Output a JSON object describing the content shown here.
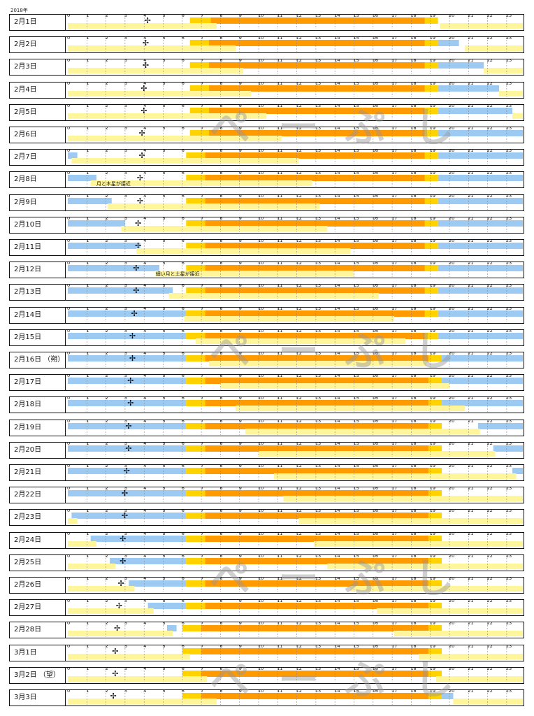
{
  "header_year": "2018年",
  "watermark_text": "ぺーぷし",
  "colors": {
    "day_core": "#ff9a00",
    "twilight": "#ffd200",
    "moon_up": "#fff59a",
    "night_sky": "#9ccaf2",
    "grid": "#888888",
    "border": "#111111"
  },
  "chart_data": {
    "type": "timeline",
    "title": "",
    "xlabel": "",
    "ylabel": "",
    "hour_ticks": [
      "0",
      "1",
      "2",
      "3",
      "4",
      "5",
      "6",
      "7",
      "8",
      "9",
      "10",
      "11",
      "12",
      "13",
      "14",
      "15",
      "16",
      "17",
      "18",
      "19",
      "20",
      "21",
      "22",
      "23"
    ],
    "xlim": [
      0,
      24
    ],
    "grid": true,
    "rows": [
      {
        "label": "2月1日",
        "blue": [],
        "yellow": [
          [
            0,
            7.8
          ],
          [
            19.5,
            24
          ]
        ],
        "cross": 4.2,
        "twilight_am": [
          6.4,
          7.5
        ],
        "day": [
          7.5,
          18.7
        ],
        "twilight_pm": [
          18.7,
          19.4
        ]
      },
      {
        "label": "2月2日",
        "blue": [
          [
            19.4,
            20.5
          ]
        ],
        "yellow": [
          [
            0,
            8.8
          ],
          [
            20.8,
            24
          ]
        ],
        "cross": 4.1,
        "twilight_am": [
          6.4,
          7.4
        ],
        "day": [
          7.4,
          18.7
        ],
        "twilight_pm": [
          18.7,
          19.4
        ]
      },
      {
        "label": "2月3日",
        "blue": [
          [
            19.4,
            21.8
          ]
        ],
        "yellow": [
          [
            0,
            9.2
          ],
          [
            21.8,
            24
          ]
        ],
        "cross": 4.1,
        "twilight_am": [
          6.4,
          7.4
        ],
        "day": [
          7.4,
          18.7
        ],
        "twilight_pm": [
          18.7,
          19.4
        ]
      },
      {
        "label": "2月4日",
        "blue": [
          [
            19.4,
            22.6
          ]
        ],
        "yellow": [
          [
            0,
            9.6
          ],
          [
            22.6,
            24
          ]
        ],
        "cross": 4.0,
        "twilight_am": [
          6.4,
          7.4
        ],
        "day": [
          7.4,
          18.7
        ],
        "twilight_pm": [
          18.7,
          19.4
        ]
      },
      {
        "label": "2月5日",
        "blue": [
          [
            19.4,
            23.3
          ]
        ],
        "yellow": [
          [
            0,
            10.4
          ],
          [
            23.3,
            24
          ]
        ],
        "cross": 4.0,
        "twilight_am": [
          6.4,
          7.4
        ],
        "day": [
          7.4,
          18.7
        ],
        "twilight_pm": [
          18.7,
          19.4
        ]
      },
      {
        "label": "2月6日",
        "blue": [
          [
            19.4,
            24
          ]
        ],
        "yellow": [
          [
            0,
            11.2
          ]
        ],
        "cross": 3.9,
        "twilight_am": [
          6.4,
          7.4
        ],
        "day": [
          7.4,
          18.7
        ],
        "twilight_pm": [
          18.7,
          19.4
        ]
      },
      {
        "label": "2月7日",
        "blue": [
          [
            0,
            0.5
          ],
          [
            19.4,
            24
          ]
        ],
        "yellow": [
          [
            0.2,
            12.1
          ]
        ],
        "cross": 3.9,
        "twilight_am": [
          6.2,
          7.2
        ],
        "day": [
          7.2,
          18.7
        ],
        "twilight_pm": [
          18.7,
          19.4
        ]
      },
      {
        "label": "2月8日",
        "blue": [
          [
            0,
            1.5
          ],
          [
            19.4,
            24
          ]
        ],
        "yellow": [
          [
            1.2,
            12.8
          ]
        ],
        "cross": 3.8,
        "twilight_am": [
          6.2,
          7.2
        ],
        "day": [
          7.2,
          18.7
        ],
        "twilight_pm": [
          18.7,
          19.4
        ],
        "note": {
          "text": "月と木星が接近",
          "at": 1.5
        }
      },
      {
        "label": "2月9日",
        "blue": [
          [
            0,
            2.3
          ],
          [
            19.4,
            24
          ]
        ],
        "yellow": [
          [
            2.1,
            13.2
          ]
        ],
        "cross": 3.8,
        "twilight_am": [
          6.2,
          7.2
        ],
        "day": [
          7.2,
          18.7
        ],
        "twilight_pm": [
          18.7,
          19.4
        ]
      },
      {
        "label": "2月10日",
        "blue": [
          [
            0,
            3.0
          ],
          [
            19.4,
            24
          ]
        ],
        "yellow": [
          [
            2.8,
            13.6
          ]
        ],
        "cross": 3.7,
        "twilight_am": [
          6.2,
          7.2
        ],
        "day": [
          7.2,
          18.7
        ],
        "twilight_pm": [
          18.7,
          19.4
        ]
      },
      {
        "label": "2月11日",
        "blue": [
          [
            0,
            3.8
          ],
          [
            19.4,
            24
          ]
        ],
        "yellow": [
          [
            3.6,
            14.8
          ]
        ],
        "cross": 3.7,
        "twilight_am": [
          6.2,
          7.2
        ],
        "day": [
          7.2,
          18.7
        ],
        "twilight_pm": [
          18.7,
          19.4
        ]
      },
      {
        "label": "2月12日",
        "blue": [
          [
            0,
            4.8
          ],
          [
            19.4,
            24
          ]
        ],
        "yellow": [
          [
            4.6,
            15.0
          ]
        ],
        "cross": 3.6,
        "twilight_am": [
          6.2,
          7.2
        ],
        "day": [
          7.2,
          18.7
        ],
        "twilight_pm": [
          18.7,
          19.4
        ],
        "note": {
          "text": "細い月と土星が接近",
          "at": 4.6
        }
      },
      {
        "label": "2月13日",
        "blue": [
          [
            0,
            5.5
          ],
          [
            19.4,
            24
          ]
        ],
        "yellow": [
          [
            5.3,
            16.3
          ]
        ],
        "cross": 3.6,
        "twilight_am": [
          6.2,
          7.2
        ],
        "day": [
          7.2,
          18.7
        ],
        "twilight_pm": [
          18.7,
          19.4
        ]
      },
      {
        "label": "2月14日",
        "blue": [
          [
            0,
            6.2
          ],
          [
            19.4,
            24
          ]
        ],
        "yellow": [
          [
            6.1,
            17.1
          ]
        ],
        "cross": 3.5,
        "twilight_am": [
          6.2,
          7.2
        ],
        "day": [
          7.2,
          18.7
        ],
        "twilight_pm": [
          18.7,
          19.4
        ]
      },
      {
        "label": "2月15日",
        "blue": [
          [
            0,
            6.2
          ],
          [
            19.4,
            24
          ]
        ],
        "yellow": [
          [
            6.7,
            17.7
          ]
        ],
        "cross": 3.4,
        "twilight_am": [
          6.2,
          7.2
        ],
        "day": [
          7.2,
          18.7
        ],
        "twilight_pm": [
          18.7,
          19.4
        ]
      },
      {
        "label": "2月16日 （朔）",
        "blue": [
          [
            0,
            6.2
          ],
          [
            19.6,
            24
          ]
        ],
        "yellow": [
          [
            7.4,
            18.8
          ]
        ],
        "cross": 3.4,
        "twilight_am": [
          6.2,
          7.2
        ],
        "day": [
          7.2,
          18.9
        ],
        "twilight_pm": [
          18.9,
          19.6
        ]
      },
      {
        "label": "2月17日",
        "blue": [
          [
            0,
            6.2
          ],
          [
            19.6,
            24
          ]
        ],
        "yellow": [
          [
            8.0,
            20.0
          ]
        ],
        "cross": 3.3,
        "twilight_am": [
          6.2,
          7.2
        ],
        "day": [
          7.2,
          18.9
        ],
        "twilight_pm": [
          18.9,
          19.6
        ]
      },
      {
        "label": "2月18日",
        "blue": [
          [
            0,
            6.2
          ],
          [
            19.6,
            24
          ]
        ],
        "yellow": [
          [
            8.8,
            20.8
          ]
        ],
        "cross": 3.3,
        "twilight_am": [
          6.2,
          7.2
        ],
        "day": [
          7.2,
          18.9
        ],
        "twilight_pm": [
          18.9,
          19.6
        ]
      },
      {
        "label": "2月19日",
        "blue": [
          [
            0,
            6.2
          ],
          [
            21.5,
            24
          ]
        ],
        "yellow": [
          [
            9.3,
            21.6
          ]
        ],
        "cross": 3.2,
        "twilight_am": [
          6.2,
          7.2
        ],
        "day": [
          7.2,
          18.9
        ],
        "twilight_pm": [
          18.9,
          19.6
        ]
      },
      {
        "label": "2月20日",
        "blue": [
          [
            0,
            6.2
          ],
          [
            22.3,
            24
          ]
        ],
        "yellow": [
          [
            10.0,
            22.4
          ]
        ],
        "cross": 3.2,
        "twilight_am": [
          6.2,
          7.2
        ],
        "day": [
          7.2,
          18.9
        ],
        "twilight_pm": [
          18.9,
          19.6
        ]
      },
      {
        "label": "2月21日",
        "blue": [
          [
            0,
            6.2
          ],
          [
            23.3,
            24
          ]
        ],
        "yellow": [
          [
            10.8,
            23.5
          ]
        ],
        "cross": 3.1,
        "twilight_am": [
          6.2,
          7.2
        ],
        "day": [
          7.2,
          18.9
        ],
        "twilight_pm": [
          18.9,
          19.6
        ]
      },
      {
        "label": "2月22日",
        "blue": [
          [
            0,
            6.2
          ]
        ],
        "yellow": [
          [
            11.3,
            24
          ]
        ],
        "cross": 3.0,
        "twilight_am": [
          6.2,
          7.2
        ],
        "day": [
          7.2,
          18.9
        ],
        "twilight_pm": [
          18.9,
          19.6
        ]
      },
      {
        "label": "2月23日",
        "blue": [
          [
            0.2,
            6.2
          ]
        ],
        "yellow": [
          [
            0,
            0.5
          ],
          [
            12.1,
            24
          ]
        ],
        "cross": 3.0,
        "twilight_am": [
          6.2,
          7.2
        ],
        "day": [
          7.2,
          18.9
        ],
        "twilight_pm": [
          18.9,
          19.6
        ]
      },
      {
        "label": "2月24日",
        "blue": [
          [
            1.2,
            6.2
          ]
        ],
        "yellow": [
          [
            0,
            1.5
          ],
          [
            12.9,
            24
          ]
        ],
        "cross": 2.9,
        "twilight_am": [
          6.2,
          7.2
        ],
        "day": [
          7.2,
          18.9
        ],
        "twilight_pm": [
          18.9,
          19.6
        ]
      },
      {
        "label": "2月25日",
        "blue": [
          [
            2.2,
            6.2
          ]
        ],
        "yellow": [
          [
            0,
            2.5
          ],
          [
            13.6,
            24
          ]
        ],
        "cross": 2.9,
        "twilight_am": [
          6.2,
          7.2
        ],
        "day": [
          7.2,
          18.9
        ],
        "twilight_pm": [
          18.9,
          19.6
        ]
      },
      {
        "label": "2月26日",
        "blue": [
          [
            3.2,
            6.2
          ]
        ],
        "yellow": [
          [
            0,
            3.5
          ],
          [
            14.8,
            24
          ]
        ],
        "cross": 2.8,
        "twilight_am": [
          6.2,
          7.2
        ],
        "day": [
          7.2,
          18.9
        ],
        "twilight_pm": [
          18.9,
          19.6
        ]
      },
      {
        "label": "2月27日",
        "blue": [
          [
            4.2,
            6.2
          ]
        ],
        "yellow": [
          [
            0,
            4.5
          ],
          [
            16.2,
            24
          ]
        ],
        "cross": 2.7,
        "twilight_am": [
          6.2,
          7.2
        ],
        "day": [
          7.2,
          18.9
        ],
        "twilight_pm": [
          18.9,
          19.6
        ]
      },
      {
        "label": "2月28日",
        "blue": [
          [
            5.2,
            5.7
          ]
        ],
        "yellow": [
          [
            0,
            5.5
          ],
          [
            17.1,
            24
          ]
        ],
        "cross": 2.6,
        "twilight_am": [
          6.0,
          7.0
        ],
        "day": [
          7.0,
          18.9
        ],
        "twilight_pm": [
          18.9,
          19.6
        ]
      },
      {
        "label": "3月1日",
        "blue": [],
        "yellow": [
          [
            0,
            6.4
          ],
          [
            18.4,
            24
          ]
        ],
        "cross": 2.5,
        "twilight_am": [
          6.0,
          7.0
        ],
        "day": [
          7.0,
          18.9
        ],
        "twilight_pm": [
          18.9,
          19.6
        ]
      },
      {
        "label": "3月2日 （望）",
        "blue": [],
        "yellow": [
          [
            0,
            7.3
          ],
          [
            19.3,
            24
          ]
        ],
        "cross": 2.5,
        "twilight_am": [
          6.0,
          7.0
        ],
        "day": [
          7.0,
          18.9
        ],
        "twilight_pm": [
          18.9,
          19.6
        ]
      },
      {
        "label": "3月3日",
        "blue": [
          [
            19.6,
            20.2
          ]
        ],
        "yellow": [
          [
            0,
            7.8
          ],
          [
            20.2,
            24
          ]
        ],
        "cross": 2.4,
        "twilight_am": [
          6.0,
          7.0
        ],
        "day": [
          7.0,
          18.9
        ],
        "twilight_pm": [
          18.9,
          19.6
        ]
      }
    ]
  }
}
